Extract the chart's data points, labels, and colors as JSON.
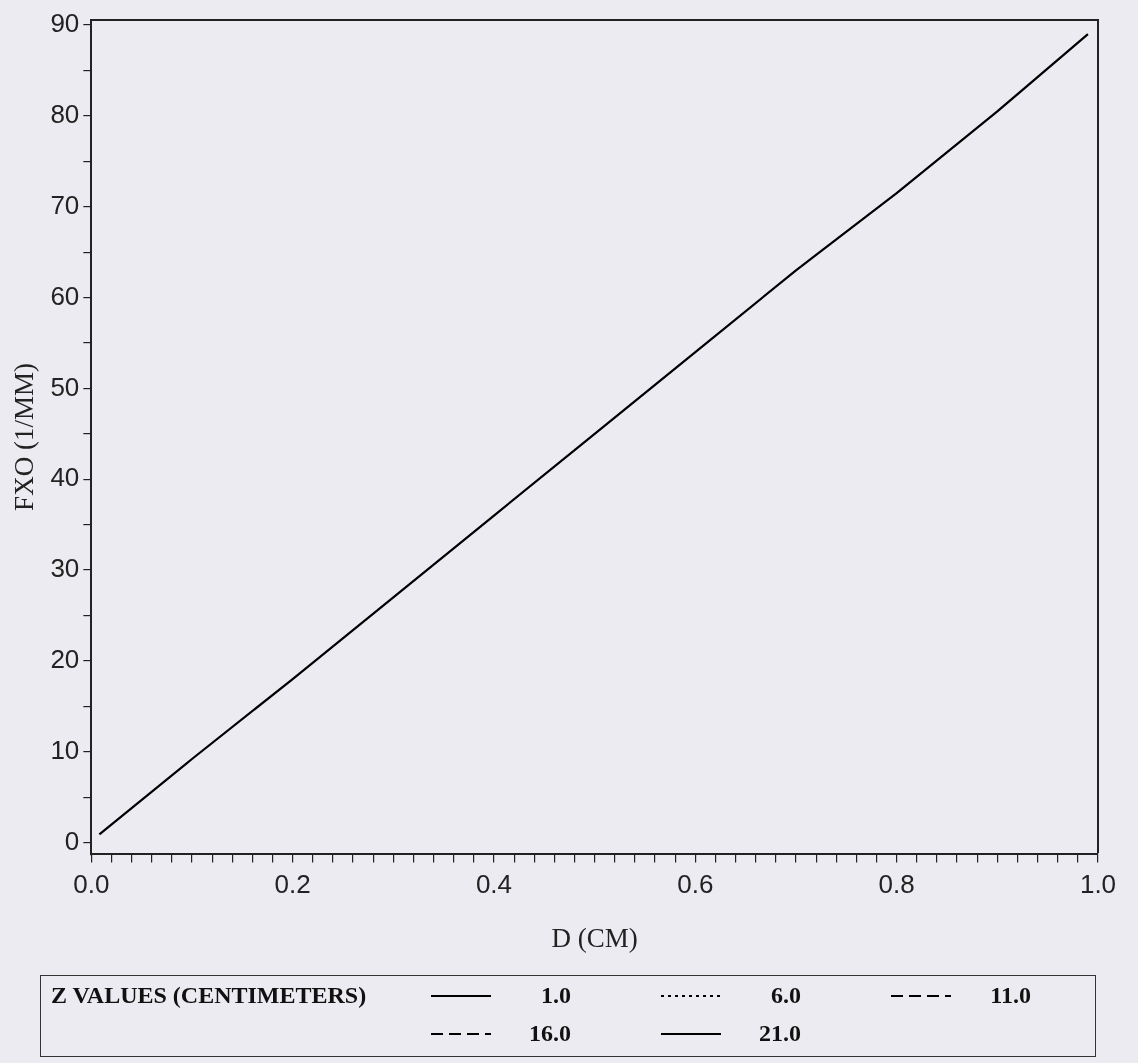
{
  "chart_data": {
    "type": "line",
    "xlabel": "D (CM)",
    "ylabel": "FXO (1/MM)",
    "legend_title": "Z VALUES (CENTIMETERS)",
    "legend": "bottom",
    "grid": false,
    "marker": "none",
    "xlim": [
      0,
      1
    ],
    "ylim": [
      -1.3,
      90.6
    ],
    "xticks": [
      {
        "value": 0,
        "label": "0.0"
      },
      {
        "value": 0.02,
        "label": null
      },
      {
        "value": 0.04,
        "label": null
      },
      {
        "value": 0.06,
        "label": null
      },
      {
        "value": 0.08,
        "label": null
      },
      {
        "value": 0.1,
        "label": null
      },
      {
        "value": 0.12,
        "label": null
      },
      {
        "value": 0.14,
        "label": null
      },
      {
        "value": 0.16,
        "label": null
      },
      {
        "value": 0.18,
        "label": null
      },
      {
        "value": 0.2,
        "label": "0.2"
      },
      {
        "value": 0.22,
        "label": null
      },
      {
        "value": 0.24,
        "label": null
      },
      {
        "value": 0.26,
        "label": null
      },
      {
        "value": 0.28,
        "label": null
      },
      {
        "value": 0.3,
        "label": null
      },
      {
        "value": 0.32,
        "label": null
      },
      {
        "value": 0.34,
        "label": null
      },
      {
        "value": 0.36,
        "label": null
      },
      {
        "value": 0.38,
        "label": null
      },
      {
        "value": 0.4,
        "label": "0.4"
      },
      {
        "value": 0.42,
        "label": null
      },
      {
        "value": 0.44,
        "label": null
      },
      {
        "value": 0.46,
        "label": null
      },
      {
        "value": 0.48,
        "label": null
      },
      {
        "value": 0.5,
        "label": null
      },
      {
        "value": 0.52,
        "label": null
      },
      {
        "value": 0.54,
        "label": null
      },
      {
        "value": 0.56,
        "label": null
      },
      {
        "value": 0.58,
        "label": null
      },
      {
        "value": 0.6,
        "label": "0.6"
      },
      {
        "value": 0.62,
        "label": null
      },
      {
        "value": 0.64,
        "label": null
      },
      {
        "value": 0.66,
        "label": null
      },
      {
        "value": 0.68,
        "label": null
      },
      {
        "value": 0.7,
        "label": null
      },
      {
        "value": 0.72,
        "label": null
      },
      {
        "value": 0.74,
        "label": null
      },
      {
        "value": 0.76,
        "label": null
      },
      {
        "value": 0.78,
        "label": null
      },
      {
        "value": 0.8,
        "label": "0.8"
      },
      {
        "value": 0.82,
        "label": null
      },
      {
        "value": 0.84,
        "label": null
      },
      {
        "value": 0.86,
        "label": null
      },
      {
        "value": 0.88,
        "label": null
      },
      {
        "value": 0.9,
        "label": null
      },
      {
        "value": 0.92,
        "label": null
      },
      {
        "value": 0.94,
        "label": null
      },
      {
        "value": 0.96,
        "label": null
      },
      {
        "value": 0.98,
        "label": null
      },
      {
        "value": 1,
        "label": "1.0"
      }
    ],
    "yticks": [
      0,
      {
        "value": 5,
        "label": null
      },
      10,
      {
        "value": 15,
        "label": null
      },
      20,
      {
        "value": 25,
        "label": null
      },
      30,
      {
        "value": 35,
        "label": null
      },
      40,
      {
        "value": 45,
        "label": null
      },
      50,
      {
        "value": 55,
        "label": null
      },
      60,
      {
        "value": 65,
        "label": null
      },
      70,
      {
        "value": 75,
        "label": null
      },
      80,
      {
        "value": 85,
        "label": null
      },
      90
    ],
    "series": [
      {
        "name": "1.0",
        "color": "#000000",
        "line_style": "solid",
        "x": [
          0.008,
          0.1,
          0.2,
          0.3,
          0.4,
          0.5,
          0.6,
          0.7,
          0.8,
          0.9,
          0.99
        ],
        "values": [
          0.9,
          9.2,
          18,
          27,
          36,
          45,
          54,
          63,
          71.5,
          80.5,
          89
        ]
      },
      {
        "name": "6.0",
        "color": "#000000",
        "line_style": "dotted"
      },
      {
        "name": "11.0",
        "color": "#000000",
        "line_style": "dashed"
      },
      {
        "name": "16.0",
        "color": "#000000",
        "line_style": "dashed"
      },
      {
        "name": "21.0",
        "color": "#000000",
        "line_style": "solid"
      }
    ]
  }
}
